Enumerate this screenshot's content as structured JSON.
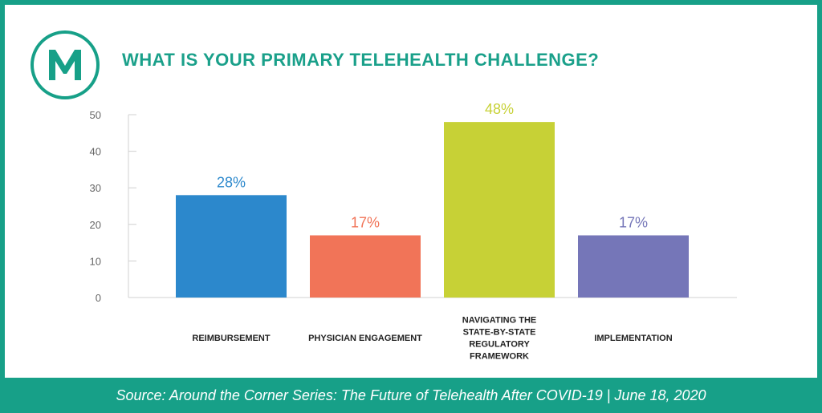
{
  "title": "WHAT IS YOUR PRIMARY TELEHEALTH CHALLENGE?",
  "logo": {
    "letter": "M",
    "icon": "m-logo-icon"
  },
  "footer": {
    "source_text": "Source: Around the Corner Series: The Future of Telehealth After COVID-19  |  June 18, 2020"
  },
  "colors": {
    "accent": "#17a088",
    "axis_text": "#666666",
    "axis_line": "#d0d0d0"
  },
  "chart_data": {
    "type": "bar",
    "title": "WHAT IS YOUR PRIMARY TELEHEALTH CHALLENGE?",
    "categories": [
      "REIMBURSEMENT",
      "PHYSICIAN ENGAGEMENT",
      "NAVIGATING THE STATE-BY-STATE REGULATORY FRAMEWORK",
      "IMPLEMENTATION"
    ],
    "category_label_lines": [
      [
        "REIMBURSEMENT"
      ],
      [
        "PHYSICIAN ENGAGEMENT"
      ],
      [
        "NAVIGATING THE",
        "STATE-BY-STATE",
        "REGULATORY",
        "FRAMEWORK"
      ],
      [
        "IMPLEMENTATION"
      ]
    ],
    "values": [
      28,
      17,
      48,
      17
    ],
    "data_labels": [
      "28%",
      "17%",
      "48%",
      "17%"
    ],
    "bar_colors": [
      "#2c88cc",
      "#f17458",
      "#c7d136",
      "#7576b8"
    ],
    "yticks": [
      0,
      10,
      20,
      30,
      40,
      50
    ],
    "ylim": [
      0,
      50
    ],
    "xlabel": "",
    "ylabel": "",
    "grid": false,
    "legend": "none"
  }
}
